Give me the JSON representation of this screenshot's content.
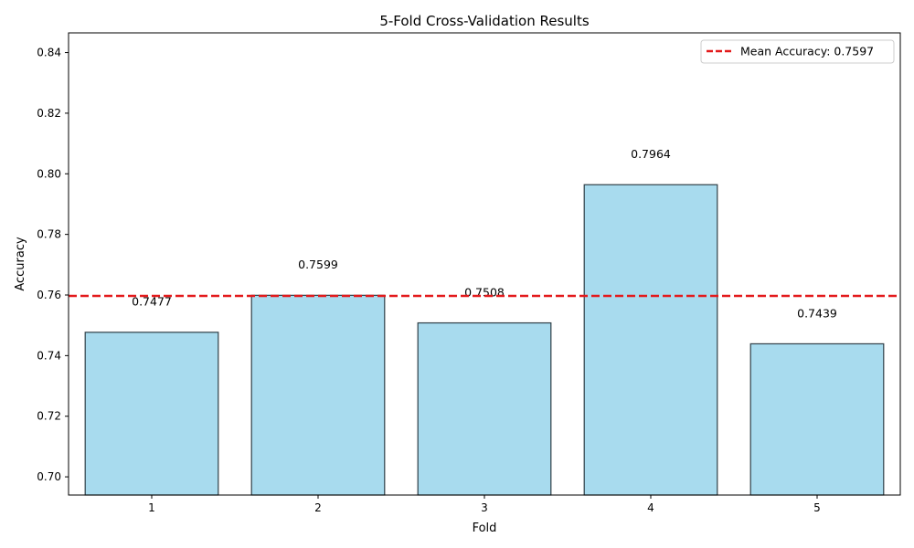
{
  "chart_data": {
    "type": "bar",
    "title": "5-Fold Cross-Validation Results",
    "xlabel": "Fold",
    "ylabel": "Accuracy",
    "categories": [
      "1",
      "2",
      "3",
      "4",
      "5"
    ],
    "values": [
      0.7477,
      0.7599,
      0.7508,
      0.7964,
      0.7439
    ],
    "value_labels": [
      "0.7477",
      "0.7599",
      "0.7508",
      "0.7964",
      "0.7439"
    ],
    "ylim": [
      0.694,
      0.8465
    ],
    "yticks": [
      0.7,
      0.72,
      0.74,
      0.76,
      0.78,
      0.8,
      0.82,
      0.84
    ],
    "ytick_labels": [
      "0.70",
      "0.72",
      "0.74",
      "0.76",
      "0.78",
      "0.80",
      "0.82",
      "0.84"
    ],
    "mean_line": {
      "value": 0.7597,
      "label": "Mean Accuracy: 0.7597",
      "color": "#e31a1c",
      "style": "dashed"
    },
    "bar_color": "#a8dbee",
    "bar_edge_color": "#2f3f47",
    "grid": false,
    "legend_position": "top-right"
  }
}
